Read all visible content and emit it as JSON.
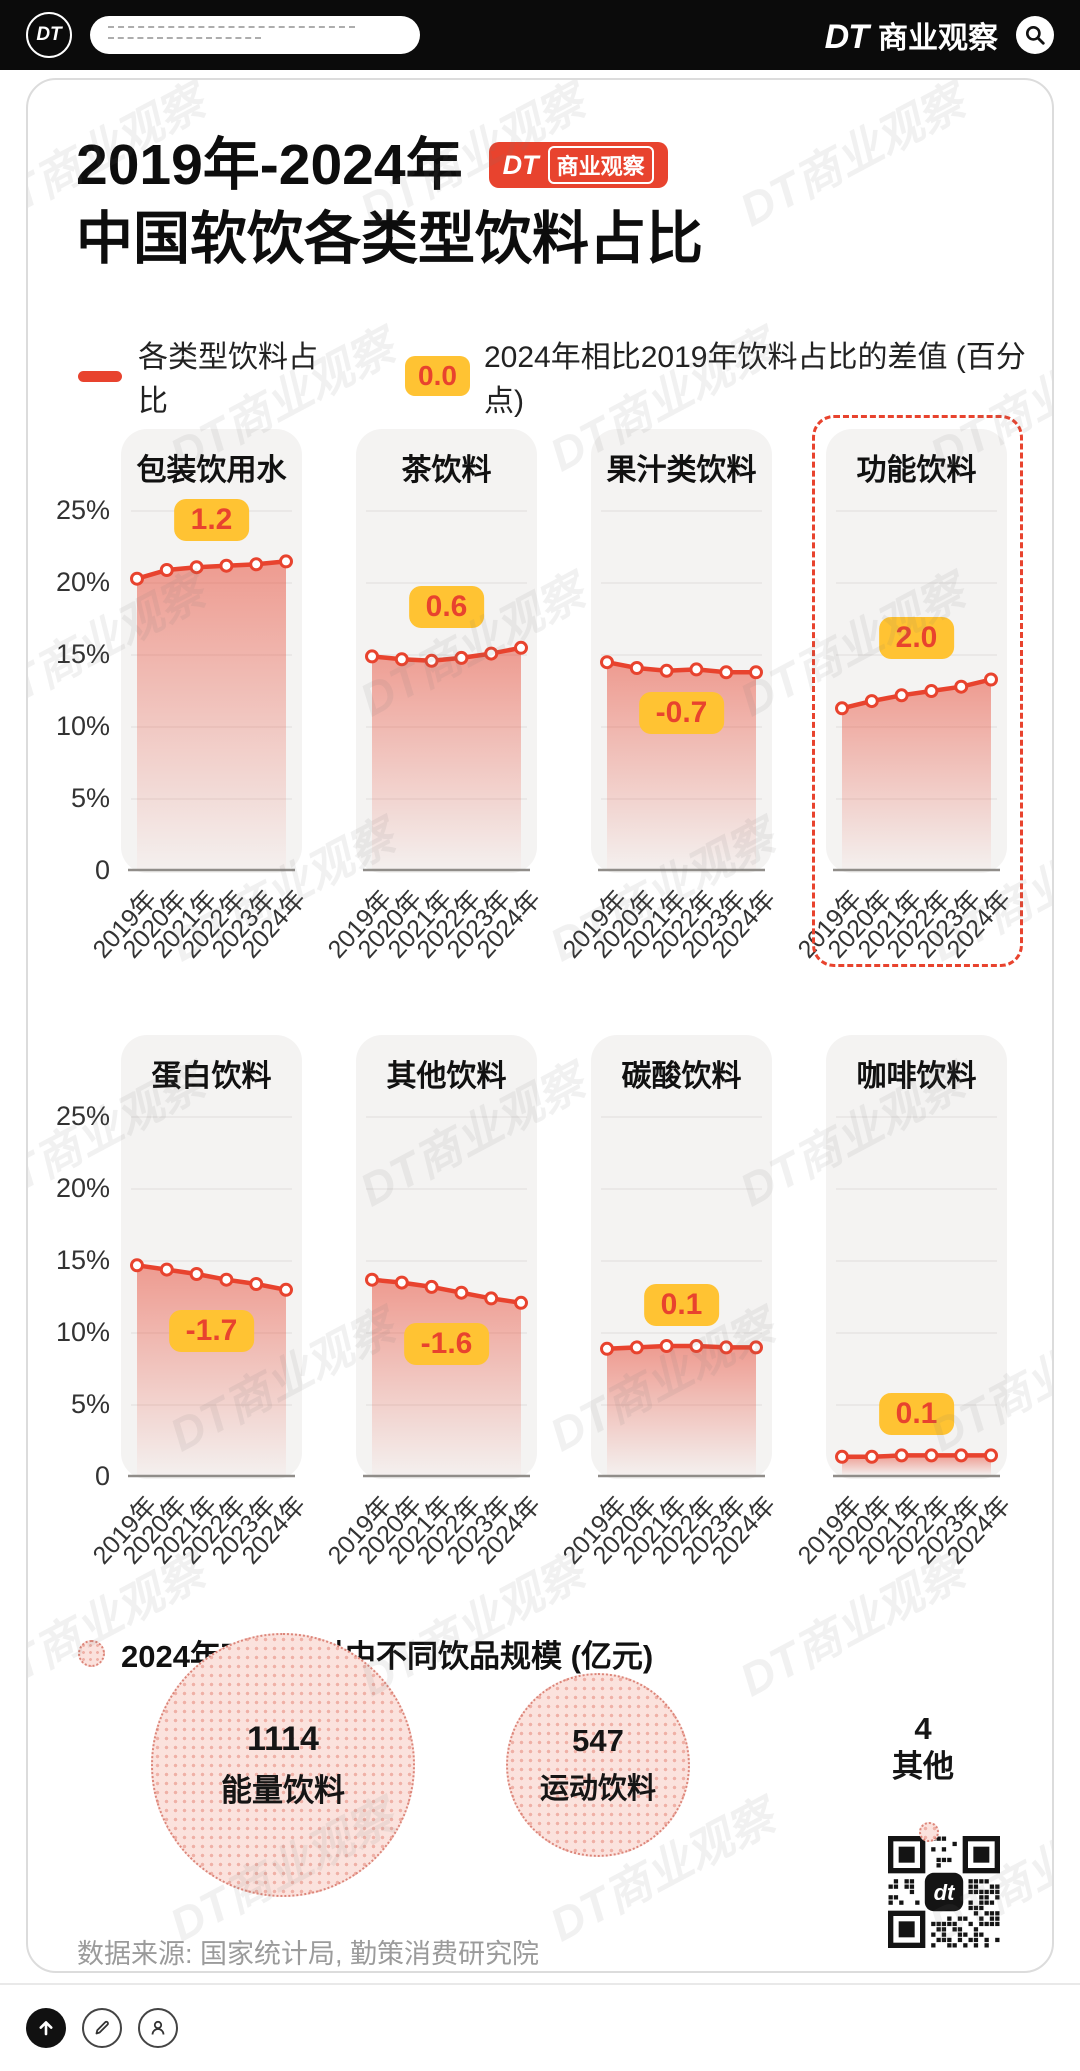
{
  "header": {
    "logo": "DT",
    "brand_dt": "DT",
    "brand_name": "商业观察"
  },
  "title": {
    "line1": "2019年-2024年",
    "line2": "中国软饮各类型饮料占比",
    "badge_dt": "DT",
    "badge_name": "商业观察"
  },
  "legend": {
    "series_label": "各类型饮料占比",
    "diff_sample": "0.0",
    "diff_label": "2024年相比2019年饮料占比的差值 (百分点)"
  },
  "chart_data": {
    "line_charts": {
      "type": "line",
      "unit": "percent",
      "categories": [
        "2019年",
        "2020年",
        "2021年",
        "2022年",
        "2023年",
        "2024年"
      ],
      "ylim": [
        0,
        25
      ],
      "y_ticks": [
        "25%",
        "20%",
        "15%",
        "10%",
        "5%",
        "0"
      ],
      "grid": true,
      "charts": [
        {
          "title": "包装饮用水",
          "values": [
            20.3,
            20.9,
            21.1,
            21.2,
            21.3,
            21.5
          ],
          "diff": "1.2",
          "highlight": false
        },
        {
          "title": "茶饮料",
          "values": [
            14.9,
            14.7,
            14.6,
            14.8,
            15.1,
            15.5
          ],
          "diff": "0.6",
          "highlight": false
        },
        {
          "title": "果汁类饮料",
          "values": [
            14.5,
            14.1,
            13.9,
            14.0,
            13.8,
            13.8
          ],
          "diff": "-0.7",
          "highlight": false
        },
        {
          "title": "功能饮料",
          "values": [
            11.3,
            11.8,
            12.2,
            12.5,
            12.8,
            13.3
          ],
          "diff": "2.0",
          "highlight": true
        },
        {
          "title": "蛋白饮料",
          "values": [
            14.7,
            14.4,
            14.1,
            13.7,
            13.4,
            13.0
          ],
          "diff": "-1.7",
          "highlight": false
        },
        {
          "title": "其他饮料",
          "values": [
            13.7,
            13.5,
            13.2,
            12.8,
            12.4,
            12.1
          ],
          "diff": "-1.6",
          "highlight": false
        },
        {
          "title": "碳酸饮料",
          "values": [
            8.9,
            9.0,
            9.1,
            9.1,
            9.0,
            9.0
          ],
          "diff": "0.1",
          "highlight": false
        },
        {
          "title": "咖啡饮料",
          "values": [
            1.4,
            1.4,
            1.5,
            1.5,
            1.5,
            1.5
          ],
          "diff": "0.1",
          "highlight": false
        }
      ]
    },
    "bubble_chart": {
      "type": "bubble",
      "title": "2024年功能饮料中不同饮品规模 (亿元)",
      "items": [
        {
          "label": "能量饮料",
          "value": 1114
        },
        {
          "label": "运动饮料",
          "value": 547
        },
        {
          "label": "其他",
          "value": 4
        }
      ]
    }
  },
  "source": "数据来源: 国家统计局, 勤策消费研究院",
  "watermark": "DT商业观察",
  "qr_label": "dt",
  "colors": {
    "accent": "#e8432e",
    "badge_bg": "#ffc333",
    "badge_text": "#e8432e",
    "bubble_fill": "#fbe2dd"
  }
}
